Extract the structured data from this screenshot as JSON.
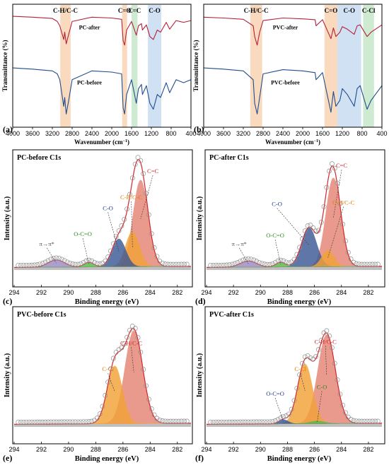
{
  "chart_data": [
    {
      "id": "a",
      "type": "line",
      "panel_label": "(a)",
      "xlabel": "Wavenumber (cm",
      "xlabel_sup": "−1",
      "xlabel_close": ")",
      "ylabel": "Transmittance (%)",
      "xlim": [
        4000,
        400
      ],
      "xticks": [
        4000,
        3600,
        3200,
        2800,
        2400,
        2000,
        1600,
        1200,
        800,
        400
      ],
      "bands": [
        {
          "label": "C-H/C-C",
          "from": 3040,
          "to": 2830,
          "color": "#f9d3b4"
        },
        {
          "label": "C=O",
          "from": 1790,
          "to": 1690,
          "color": "#f9d3b4"
        },
        {
          "label": "C=C",
          "from": 1600,
          "to": 1480,
          "color": "#c6e6c8"
        },
        {
          "label": "C-O",
          "from": 1270,
          "to": 1000,
          "color": "#c8dcf2"
        }
      ],
      "series": [
        {
          "name": "PC-after",
          "color": "#b5203a",
          "points": [
            [
              4000,
              0.92
            ],
            [
              3600,
              0.9
            ],
            [
              3200,
              0.87
            ],
            [
              3100,
              0.8
            ],
            [
              3050,
              0.7
            ],
            [
              2970,
              0.38
            ],
            [
              2950,
              0.55
            ],
            [
              2920,
              0.28
            ],
            [
              2870,
              0.5
            ],
            [
              2800,
              0.8
            ],
            [
              2400,
              0.9
            ],
            [
              2000,
              0.88
            ],
            [
              1800,
              0.85
            ],
            [
              1770,
              0.35
            ],
            [
              1740,
              0.25
            ],
            [
              1700,
              0.6
            ],
            [
              1600,
              0.8
            ],
            [
              1505,
              0.48
            ],
            [
              1460,
              0.7
            ],
            [
              1400,
              0.75
            ],
            [
              1380,
              0.6
            ],
            [
              1300,
              0.72
            ],
            [
              1230,
              0.45
            ],
            [
              1160,
              0.38
            ],
            [
              1080,
              0.6
            ],
            [
              1015,
              0.55
            ],
            [
              900,
              0.78
            ],
            [
              830,
              0.62
            ],
            [
              700,
              0.82
            ],
            [
              550,
              0.78
            ],
            [
              400,
              0.82
            ]
          ]
        },
        {
          "name": "PC-before",
          "color": "#1f4e8c",
          "points": [
            [
              4000,
              0.9
            ],
            [
              3600,
              0.88
            ],
            [
              3200,
              0.85
            ],
            [
              3100,
              0.8
            ],
            [
              3050,
              0.7
            ],
            [
              2970,
              0.25
            ],
            [
              2950,
              0.4
            ],
            [
              2920,
              0.12
            ],
            [
              2870,
              0.35
            ],
            [
              2800,
              0.7
            ],
            [
              2400,
              0.85
            ],
            [
              2000,
              0.83
            ],
            [
              1800,
              0.8
            ],
            [
              1770,
              0.22
            ],
            [
              1740,
              0.12
            ],
            [
              1700,
              0.45
            ],
            [
              1600,
              0.7
            ],
            [
              1505,
              0.3
            ],
            [
              1460,
              0.55
            ],
            [
              1400,
              0.62
            ],
            [
              1380,
              0.45
            ],
            [
              1300,
              0.6
            ],
            [
              1230,
              0.3
            ],
            [
              1160,
              0.2
            ],
            [
              1080,
              0.45
            ],
            [
              1015,
              0.4
            ],
            [
              900,
              0.65
            ],
            [
              830,
              0.48
            ],
            [
              700,
              0.7
            ],
            [
              550,
              0.65
            ],
            [
              400,
              0.7
            ]
          ]
        }
      ]
    },
    {
      "id": "b",
      "type": "line",
      "panel_label": "(b)",
      "xlabel": "Wavenumber (cm",
      "xlabel_sup": "−1",
      "xlabel_close": ")",
      "ylabel": "Transmittance (%)",
      "xlim": [
        4000,
        400
      ],
      "xticks": [
        4000,
        3600,
        3200,
        2800,
        2400,
        2000,
        1600,
        1200,
        800,
        400
      ],
      "bands": [
        {
          "label": "C-H/C-C",
          "from": 3060,
          "to": 2820,
          "color": "#f9d3b4"
        },
        {
          "label": "C=O",
          "from": 1560,
          "to": 1300,
          "color": "#f9d3b4"
        },
        {
          "label": "C-O",
          "from": 1300,
          "to": 820,
          "color": "#c8dcf2"
        },
        {
          "label": "C-Cl",
          "from": 780,
          "to": 560,
          "color": "#c6e6c8"
        }
      ],
      "series": [
        {
          "name": "PVC-after",
          "color": "#b5203a",
          "points": [
            [
              4000,
              0.9
            ],
            [
              3600,
              0.88
            ],
            [
              3200,
              0.85
            ],
            [
              3000,
              0.7
            ],
            [
              2970,
              0.45
            ],
            [
              2920,
              0.25
            ],
            [
              2870,
              0.55
            ],
            [
              2800,
              0.82
            ],
            [
              2400,
              0.88
            ],
            [
              2000,
              0.86
            ],
            [
              1750,
              0.84
            ],
            [
              1730,
              0.7
            ],
            [
              1600,
              0.84
            ],
            [
              1430,
              0.4
            ],
            [
              1380,
              0.65
            ],
            [
              1330,
              0.45
            ],
            [
              1250,
              0.55
            ],
            [
              1200,
              0.68
            ],
            [
              1100,
              0.62
            ],
            [
              960,
              0.5
            ],
            [
              900,
              0.7
            ],
            [
              840,
              0.72
            ],
            [
              700,
              0.45
            ],
            [
              620,
              0.55
            ],
            [
              400,
              0.72
            ]
          ]
        },
        {
          "name": "PVC-before",
          "color": "#1f4e8c",
          "points": [
            [
              4000,
              0.9
            ],
            [
              3600,
              0.88
            ],
            [
              3200,
              0.85
            ],
            [
              3000,
              0.7
            ],
            [
              2970,
              0.3
            ],
            [
              2920,
              0.12
            ],
            [
              2870,
              0.4
            ],
            [
              2800,
              0.8
            ],
            [
              2400,
              0.87
            ],
            [
              2000,
              0.85
            ],
            [
              1750,
              0.82
            ],
            [
              1730,
              0.7
            ],
            [
              1600,
              0.82
            ],
            [
              1430,
              0.15
            ],
            [
              1380,
              0.5
            ],
            [
              1330,
              0.25
            ],
            [
              1250,
              0.35
            ],
            [
              1200,
              0.55
            ],
            [
              1100,
              0.45
            ],
            [
              960,
              0.25
            ],
            [
              900,
              0.55
            ],
            [
              840,
              0.6
            ],
            [
              700,
              0.2
            ],
            [
              620,
              0.35
            ],
            [
              400,
              0.6
            ]
          ]
        }
      ]
    },
    {
      "id": "c",
      "type": "area",
      "title": "PC-before C1s",
      "panel_label": "(c)",
      "xlabel": "Binding energy (eV)",
      "ylabel": "Intensity (a.u.)",
      "xlim": [
        294,
        281
      ],
      "xticks": [
        294,
        292,
        290,
        288,
        286,
        284,
        282
      ],
      "peaks": [
        {
          "label": "C=C",
          "center": 284.7,
          "sigma": 0.55,
          "height": 0.84,
          "fill": "#e58575",
          "label_color": "#d1262c"
        },
        {
          "label": "C-H/C-C",
          "center": 285.3,
          "sigma": 0.5,
          "height": 0.34,
          "fill": "#f2a338",
          "label_color": "#e07a00"
        },
        {
          "label": "C-O",
          "center": 286.3,
          "sigma": 0.5,
          "height": 0.27,
          "fill": "#3d5a96",
          "label_color": "#1f3a8a"
        },
        {
          "label": "O-C=O",
          "center": 288.5,
          "sigma": 0.35,
          "height": 0.045,
          "fill": "#5ab64a",
          "label_color": "#2c8a22"
        },
        {
          "label": "π→π*",
          "center": 290.9,
          "sigma": 0.6,
          "height": 0.07,
          "fill": "#9b8bc4",
          "label_color": "#555555"
        }
      ]
    },
    {
      "id": "d",
      "type": "area",
      "title": "PC-after C1s",
      "panel_label": "(d)",
      "xlabel": "Binding energy (eV)",
      "ylabel": "Intensity (a.u.)",
      "xlim": [
        294,
        281
      ],
      "xticks": [
        294,
        292,
        290,
        288,
        286,
        284,
        282
      ],
      "peaks": [
        {
          "label": "C=C",
          "center": 284.6,
          "sigma": 0.55,
          "height": 0.86,
          "fill": "#e58575",
          "label_color": "#d1262c"
        },
        {
          "label": "C-H/C-C",
          "center": 285.0,
          "sigma": 0.45,
          "height": 0.16,
          "fill": "#f2a338",
          "label_color": "#e07a00"
        },
        {
          "label": "C-O",
          "center": 286.4,
          "sigma": 0.55,
          "height": 0.38,
          "fill": "#3d5a96",
          "label_color": "#1f3a8a"
        },
        {
          "label": "O-C=O",
          "center": 288.5,
          "sigma": 0.35,
          "height": 0.045,
          "fill": "#5ab64a",
          "label_color": "#2c8a22"
        },
        {
          "label": "π→π*",
          "center": 290.9,
          "sigma": 0.6,
          "height": 0.06,
          "fill": "#9b8bc4",
          "label_color": "#555555"
        }
      ]
    },
    {
      "id": "e",
      "type": "area",
      "title": "PVC-before C1s",
      "panel_label": "(e)",
      "xlabel": "Binding energy (eV)",
      "ylabel": "Intensity (a.u.)",
      "xlim": [
        294,
        281
      ],
      "xticks": [
        294,
        292,
        290,
        288,
        286,
        284,
        282
      ],
      "peaks": [
        {
          "label": "C-H/C-C",
          "center": 285.2,
          "sigma": 0.65,
          "height": 0.9,
          "fill": "#e58575",
          "label_color": "#d1262c"
        },
        {
          "label": "C-Cl",
          "center": 286.6,
          "sigma": 0.55,
          "height": 0.56,
          "fill": "#f2a338",
          "label_color": "#e07a00"
        }
      ]
    },
    {
      "id": "f",
      "type": "area",
      "title": "PVC-after C1s",
      "panel_label": "(f)",
      "xlabel": "Binding energy (eV)",
      "ylabel": "Intensity (a.u.)",
      "xlim": [
        294,
        281
      ],
      "xticks": [
        294,
        292,
        290,
        288,
        286,
        284,
        282
      ],
      "peaks": [
        {
          "label": "C-H/C-C",
          "center": 285.1,
          "sigma": 0.65,
          "height": 0.86,
          "fill": "#e58575",
          "label_color": "#d1262c"
        },
        {
          "label": "C-Cl",
          "center": 286.7,
          "sigma": 0.55,
          "height": 0.58,
          "fill": "#f2a338",
          "label_color": "#e07a00"
        },
        {
          "label": "C-O",
          "center": 285.8,
          "sigma": 0.55,
          "height": 0.025,
          "fill": "#5ab64a",
          "label_color": "#2c8a22"
        },
        {
          "label": "O-C=O",
          "center": 288.3,
          "sigma": 0.35,
          "height": 0.04,
          "fill": "#3d4fa3",
          "label_color": "#1f3a8a"
        }
      ]
    }
  ]
}
